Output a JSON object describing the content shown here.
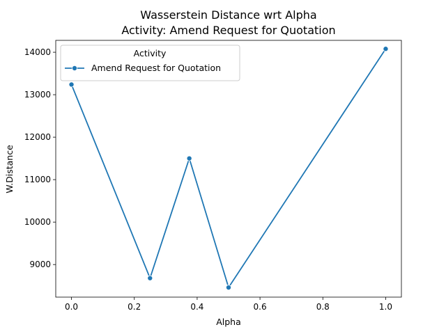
{
  "chart_data": {
    "type": "line",
    "title": "Wasserstein Distance wrt Alpha",
    "subtitle": "Activity: Amend Request for Quotation",
    "xlabel": "Alpha",
    "ylabel": "W.Distance",
    "xlim": [
      -0.05,
      1.05
    ],
    "ylim": [
      8233,
      14280
    ],
    "x_ticks": [
      0.0,
      0.2,
      0.4,
      0.6,
      0.8,
      1.0
    ],
    "x_tick_labels": [
      "0.0",
      "0.2",
      "0.4",
      "0.6",
      "0.8",
      "1.0"
    ],
    "y_ticks": [
      9000,
      10000,
      11000,
      12000,
      13000,
      14000
    ],
    "y_tick_labels": [
      "9000",
      "10000",
      "11000",
      "12000",
      "13000",
      "14000"
    ],
    "grid": false,
    "legend": {
      "title": "Activity",
      "placement": "top-left"
    },
    "series": [
      {
        "name": "Amend Request for Quotation",
        "color": "#1f77b4",
        "marker": "circle",
        "x": [
          0.0,
          0.25,
          0.375,
          0.5,
          1.0
        ],
        "y": [
          13240,
          8680,
          11500,
          8460,
          14080
        ]
      }
    ]
  }
}
